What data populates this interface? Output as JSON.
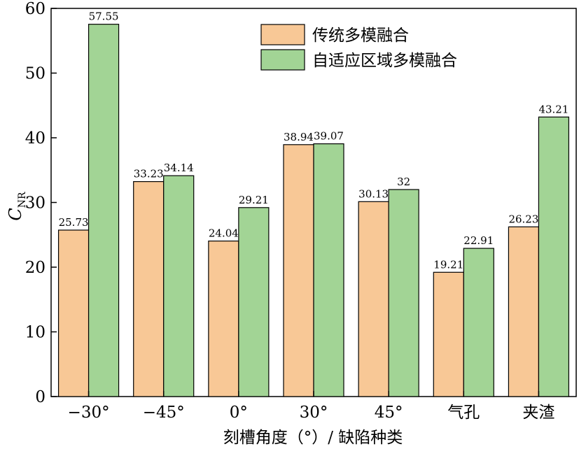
{
  "chart_data": {
    "type": "bar",
    "title": "",
    "xlabel": "刻槽角度（°）/ 缺陷种类",
    "ylabel_main": "C",
    "ylabel_sub": "NR",
    "ylim": [
      0,
      60
    ],
    "yticks": [
      0,
      10,
      20,
      30,
      40,
      50,
      60
    ],
    "categories": [
      "−30°",
      "−45°",
      "0°",
      "30°",
      "45°",
      "气孔",
      "夹渣"
    ],
    "series": [
      {
        "name": "传统多模融合",
        "values": [
          25.73,
          33.23,
          24.04,
          38.94,
          30.13,
          19.21,
          26.23
        ],
        "color": "#F8C896"
      },
      {
        "name": "自适应区域多模融合",
        "values": [
          57.55,
          34.14,
          29.21,
          39.07,
          32,
          22.91,
          43.21
        ],
        "color": "#A2D495"
      }
    ],
    "legend_position": "top-right",
    "grid": false
  }
}
